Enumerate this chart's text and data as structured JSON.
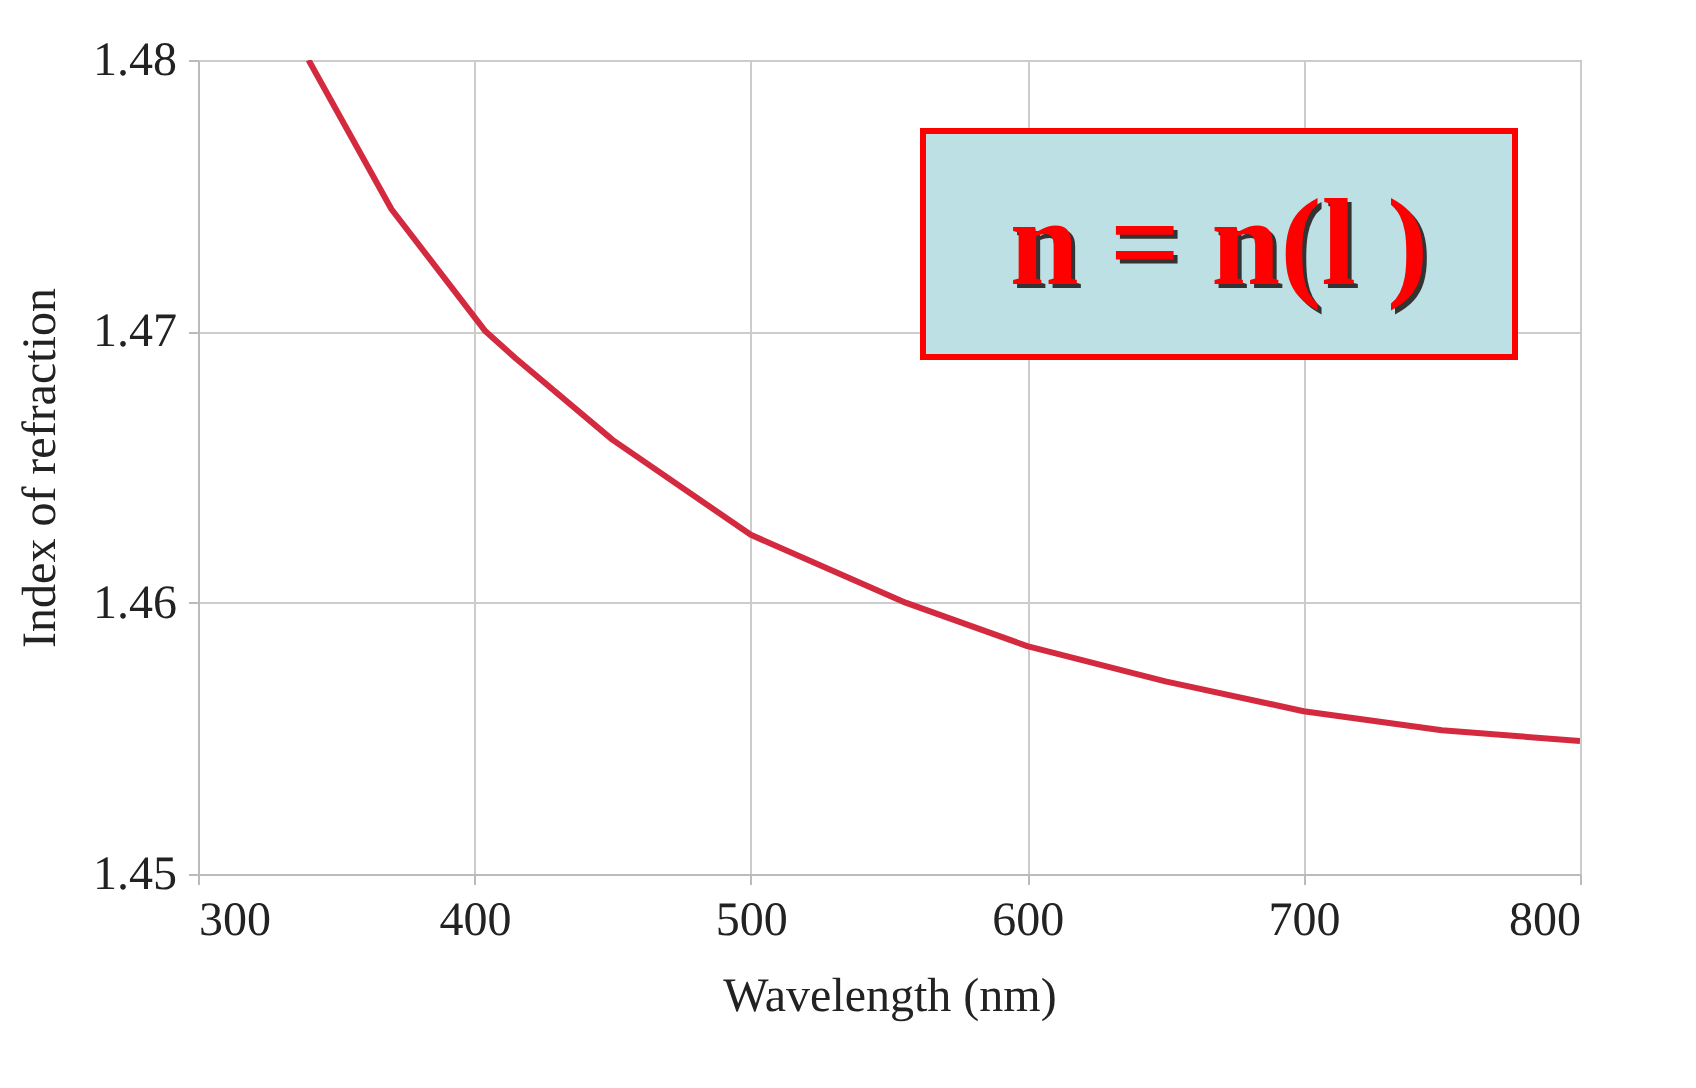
{
  "chart_data": {
    "type": "line",
    "xlabel": "Wavelength (nm)",
    "ylabel": "Index of refraction",
    "annotations": [
      "n = n(l )"
    ],
    "x": [
      340,
      370,
      404,
      415,
      450,
      500,
      556,
      600,
      650,
      700,
      750,
      800
    ],
    "series": [
      {
        "color": "#d42a40",
        "values": [
          1.48,
          1.4745,
          1.47,
          1.469,
          1.466,
          1.4625,
          1.46,
          1.4584,
          1.4571,
          1.456,
          1.4553,
          1.4549
        ]
      }
    ],
    "xlim": [
      300,
      800
    ],
    "ylim": [
      1.45,
      1.48
    ],
    "xticks": [
      300,
      400,
      500,
      600,
      700,
      800
    ],
    "yticks": [
      1.45,
      1.46,
      1.47,
      1.48
    ],
    "grid": true,
    "marker": "none",
    "line_style": "solid"
  }
}
